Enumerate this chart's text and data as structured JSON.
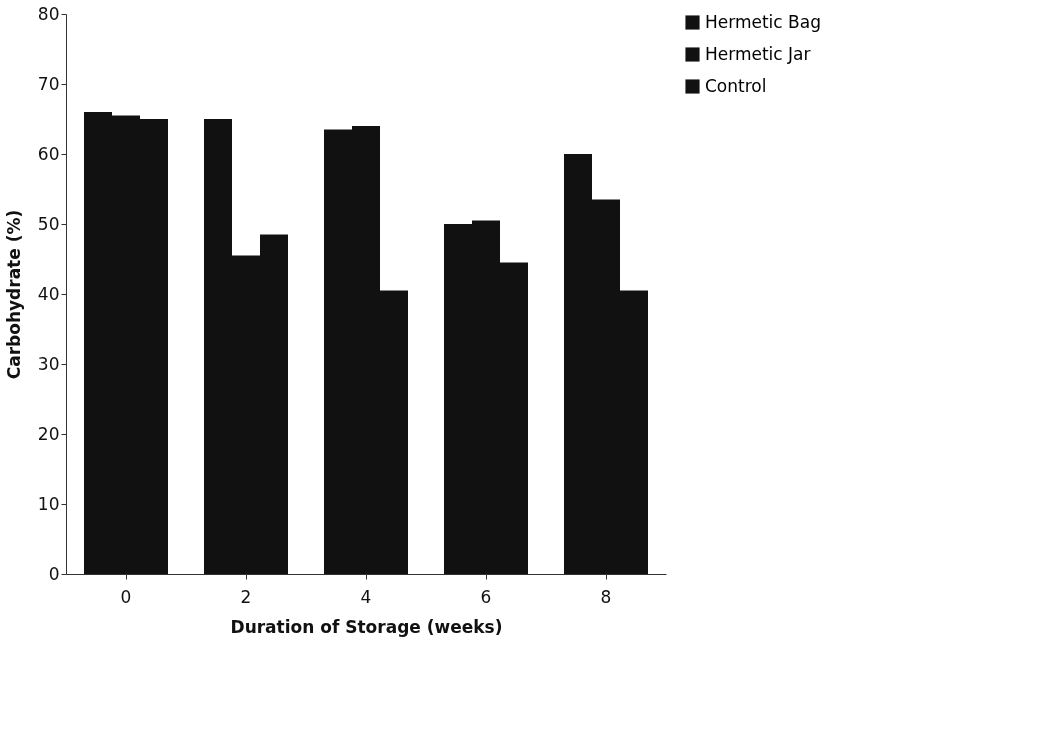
{
  "chart_data": {
    "type": "bar",
    "xlabel": "Duration of Storage (weeks)",
    "ylabel": "Carbohydrate (%)",
    "categories": [
      "0",
      "2",
      "4",
      "6",
      "8"
    ],
    "series": [
      {
        "name": "Hermetic Bag",
        "color": "#111111",
        "values": [
          66,
          65,
          63.5,
          50,
          60
        ]
      },
      {
        "name": "Hermetic Jar",
        "color": "#111111",
        "values": [
          65.5,
          45.5,
          64,
          50.5,
          53.5
        ]
      },
      {
        "name": "Control",
        "color": "#111111",
        "values": [
          65,
          48.5,
          40.5,
          44.5,
          40.5
        ]
      }
    ],
    "ylim": [
      0,
      80
    ],
    "yticks": [
      0,
      10,
      20,
      30,
      40,
      50,
      60,
      70,
      80
    ],
    "grid": false,
    "legend": "right"
  }
}
